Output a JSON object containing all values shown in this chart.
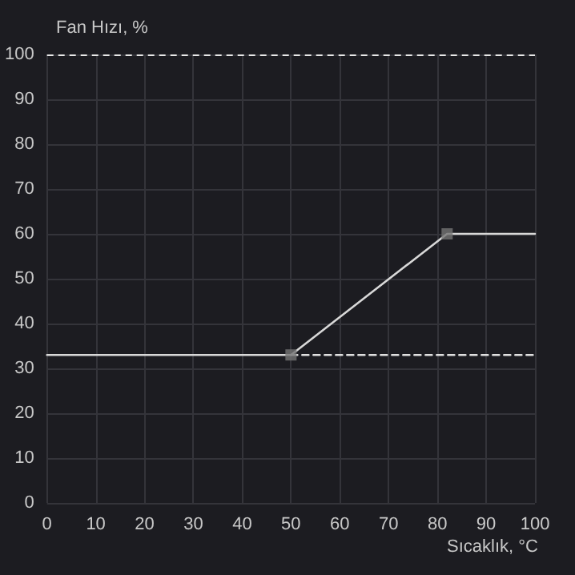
{
  "chart_data": {
    "type": "line",
    "xlabel": "Sıcaklık, °C",
    "ylabel": "Fan Hızı, %",
    "xlim": [
      0,
      100
    ],
    "xticks": [
      0,
      10,
      20,
      30,
      40,
      50,
      60,
      70,
      80,
      90,
      100
    ],
    "ylim": [
      0,
      100
    ],
    "yticks": [
      0,
      10,
      20,
      30,
      40,
      50,
      60,
      70,
      80,
      90,
      100
    ],
    "grid": true,
    "series": [
      {
        "x": [
          0,
          50,
          82,
          100
        ],
        "values": [
          33,
          33,
          60,
          60
        ],
        "color": "#d8d8d8",
        "marker": "none",
        "line_style": "solid"
      },
      {
        "x": [
          50,
          100
        ],
        "values": [
          33,
          33
        ],
        "color": "#e0e0e0",
        "marker": "none",
        "line_style": "dashed"
      },
      {
        "type": "scatter",
        "x": [
          50,
          82
        ],
        "values": [
          33,
          60
        ],
        "color": "#747474",
        "marker": "square"
      }
    ],
    "ref_lines": [
      {
        "axis": "y",
        "value": 100,
        "color": "#e8e8e8",
        "line_style": "dashed"
      }
    ]
  }
}
